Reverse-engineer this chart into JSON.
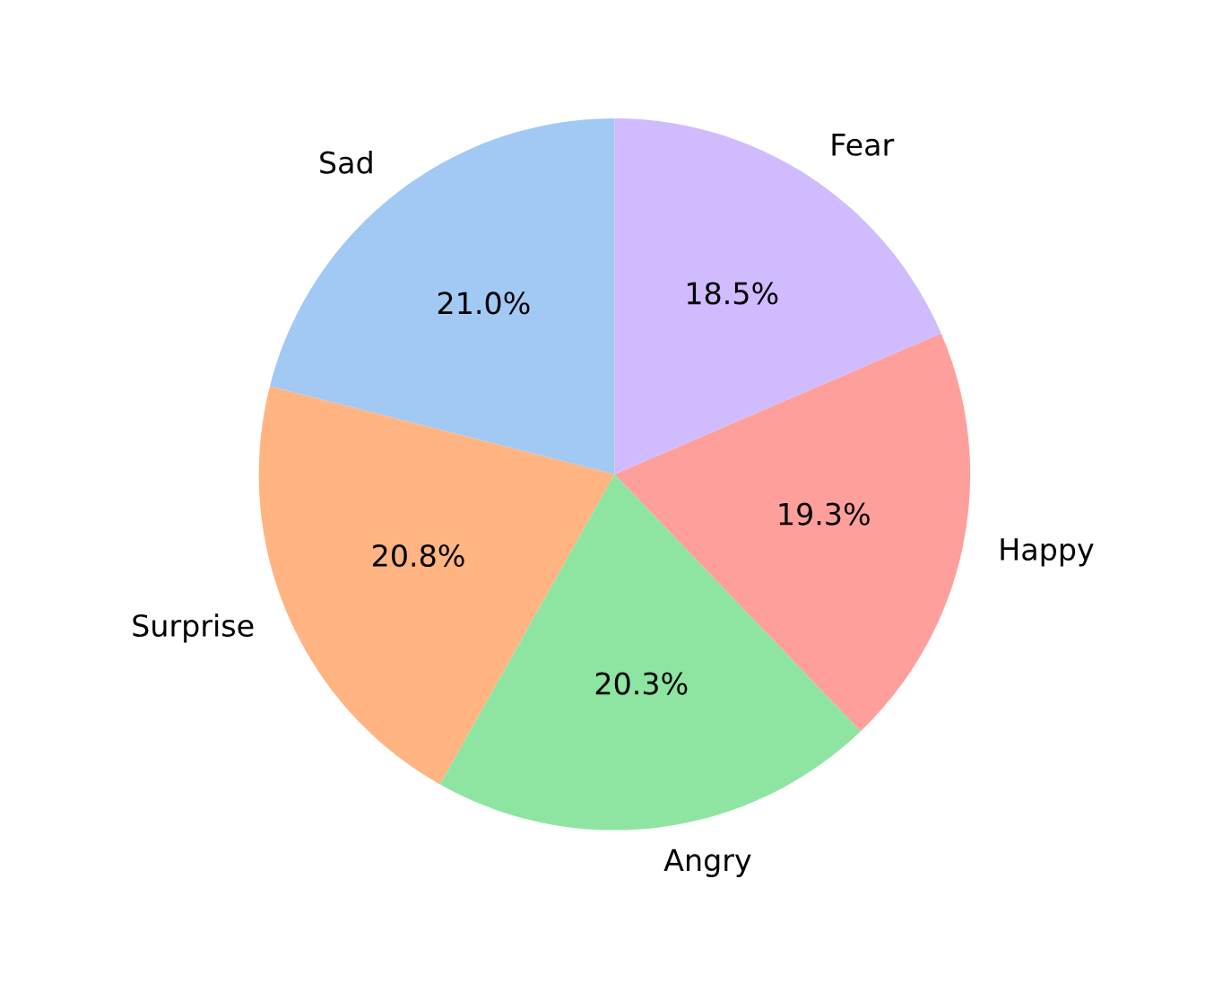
{
  "chart_data": {
    "type": "pie",
    "categories": [
      "Sad",
      "Surprise",
      "Angry",
      "Happy",
      "Fear"
    ],
    "values": [
      21.0,
      20.8,
      20.3,
      19.3,
      18.5
    ],
    "value_labels": [
      "21.0%",
      "20.8%",
      "20.3%",
      "19.3%",
      "18.5%"
    ],
    "colors": [
      "#a1c9f4",
      "#ffb482",
      "#8de5a1",
      "#ff9f9b",
      "#d0bbff"
    ]
  }
}
